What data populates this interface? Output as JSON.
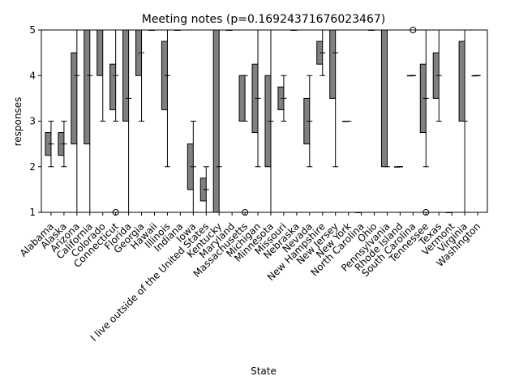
{
  "chart_data": {
    "type": "box",
    "title": "Meeting notes (p=0.16924371676023467)",
    "xlabel": "State",
    "ylabel": "responses",
    "ylim": [
      1,
      5
    ],
    "yticks": [
      "1",
      "2",
      "3",
      "4",
      "5"
    ],
    "box_color": "#808080",
    "categories": [
      "Alabama",
      "Alaska",
      "Arizona",
      "California",
      "Colorado",
      "Connecticut",
      "Florida",
      "Georgia",
      "Hawaii",
      "Illinois",
      "Indiana",
      "Iowa",
      "I live outside of the United States",
      "Kentucky",
      "Maryland",
      "Massachusetts",
      "Michigan",
      "Minnesota",
      "Missouri",
      "Nebraska",
      "Nevada",
      "New Hampshire",
      "New Jersey",
      "New York",
      "North Carolina",
      "Ohio",
      "Pennsylvania",
      "Rhode Island",
      "South Carolina",
      "Tennessee",
      "Texas",
      "Vermont",
      "Virginia",
      "Washington"
    ],
    "boxes": [
      {
        "whislo": 2,
        "q1": 2.25,
        "med": 2.5,
        "q3": 2.75,
        "whishi": 3,
        "fliers": []
      },
      {
        "whislo": 2,
        "q1": 2.25,
        "med": 2.5,
        "q3": 2.75,
        "whishi": 3,
        "fliers": []
      },
      {
        "whislo": 1,
        "q1": 2.5,
        "med": 4,
        "q3": 4.5,
        "whishi": 5,
        "fliers": []
      },
      {
        "whislo": 1,
        "q1": 2.5,
        "med": 4,
        "q3": 5,
        "whishi": 5,
        "fliers": []
      },
      {
        "whislo": 3,
        "q1": 4,
        "med": 5,
        "q3": 5,
        "whishi": 5,
        "fliers": []
      },
      {
        "whislo": 3,
        "q1": 3.25,
        "med": 4,
        "q3": 4.25,
        "whishi": 5,
        "fliers": [
          1
        ]
      },
      {
        "whislo": 1,
        "q1": 3,
        "med": 3.5,
        "q3": 5,
        "whishi": 5,
        "fliers": []
      },
      {
        "whislo": 3,
        "q1": 4,
        "med": 4.5,
        "q3": 5,
        "whishi": 5,
        "fliers": []
      },
      {
        "whislo": 5,
        "q1": 5,
        "med": 5,
        "q3": 5,
        "whishi": 5,
        "fliers": []
      },
      {
        "whislo": 2,
        "q1": 3.25,
        "med": 4,
        "q3": 4.75,
        "whishi": 5,
        "fliers": []
      },
      {
        "whislo": 5,
        "q1": 5,
        "med": 5,
        "q3": 5,
        "whishi": 5,
        "fliers": []
      },
      {
        "whislo": 1,
        "q1": 1.5,
        "med": 2,
        "q3": 2.5,
        "whishi": 3,
        "fliers": []
      },
      {
        "whislo": 1,
        "q1": 1.25,
        "med": 1.5,
        "q3": 1.75,
        "whishi": 2,
        "fliers": []
      },
      {
        "whislo": 1,
        "q1": 1,
        "med": 2,
        "q3": 5,
        "whishi": 5,
        "fliers": []
      },
      {
        "whislo": 5,
        "q1": 5,
        "med": 5,
        "q3": 5,
        "whishi": 5,
        "fliers": []
      },
      {
        "whislo": 3,
        "q1": 3,
        "med": 3,
        "q3": 4,
        "whishi": 4,
        "fliers": [
          1
        ]
      },
      {
        "whislo": 2,
        "q1": 2.75,
        "med": 3.5,
        "q3": 4.25,
        "whishi": 5,
        "fliers": []
      },
      {
        "whislo": 1,
        "q1": 2,
        "med": 3,
        "q3": 4,
        "whishi": 5,
        "fliers": []
      },
      {
        "whislo": 3,
        "q1": 3.25,
        "med": 3.5,
        "q3": 3.75,
        "whishi": 4,
        "fliers": []
      },
      {
        "whislo": 5,
        "q1": 5,
        "med": 5,
        "q3": 5,
        "whishi": 5,
        "fliers": []
      },
      {
        "whislo": 2,
        "q1": 2.5,
        "med": 3,
        "q3": 3.5,
        "whishi": 4,
        "fliers": []
      },
      {
        "whislo": 4,
        "q1": 4.25,
        "med": 4.5,
        "q3": 4.75,
        "whishi": 5,
        "fliers": []
      },
      {
        "whislo": 2,
        "q1": 3.5,
        "med": 4.5,
        "q3": 5,
        "whishi": 5,
        "fliers": []
      },
      {
        "whislo": 3,
        "q1": 3,
        "med": 3,
        "q3": 3,
        "whishi": 3,
        "fliers": []
      },
      {
        "whislo": 1,
        "q1": 1,
        "med": 1,
        "q3": 1,
        "whishi": 1,
        "fliers": []
      },
      {
        "whislo": 5,
        "q1": 5,
        "med": 5,
        "q3": 5,
        "whishi": 5,
        "fliers": []
      },
      {
        "whislo": 2,
        "q1": 2,
        "med": 5,
        "q3": 5,
        "whishi": 5,
        "fliers": []
      },
      {
        "whislo": 2,
        "q1": 2,
        "med": 2,
        "q3": 2,
        "whishi": 2,
        "fliers": []
      },
      {
        "whislo": 4,
        "q1": 4,
        "med": 4,
        "q3": 4,
        "whishi": 4,
        "fliers": [
          5
        ]
      },
      {
        "whislo": 2,
        "q1": 2.75,
        "med": 3.5,
        "q3": 4.25,
        "whishi": 5,
        "fliers": [
          1
        ]
      },
      {
        "whislo": 3,
        "q1": 3.5,
        "med": 4,
        "q3": 4.5,
        "whishi": 5,
        "fliers": []
      },
      {
        "whislo": 1,
        "q1": 1,
        "med": 1,
        "q3": 1,
        "whishi": 1,
        "fliers": []
      },
      {
        "whislo": 1,
        "q1": 3,
        "med": 3,
        "q3": 4.75,
        "whishi": 5,
        "fliers": []
      },
      {
        "whislo": 4,
        "q1": 4,
        "med": 4,
        "q3": 4,
        "whishi": 4,
        "fliers": []
      }
    ]
  }
}
